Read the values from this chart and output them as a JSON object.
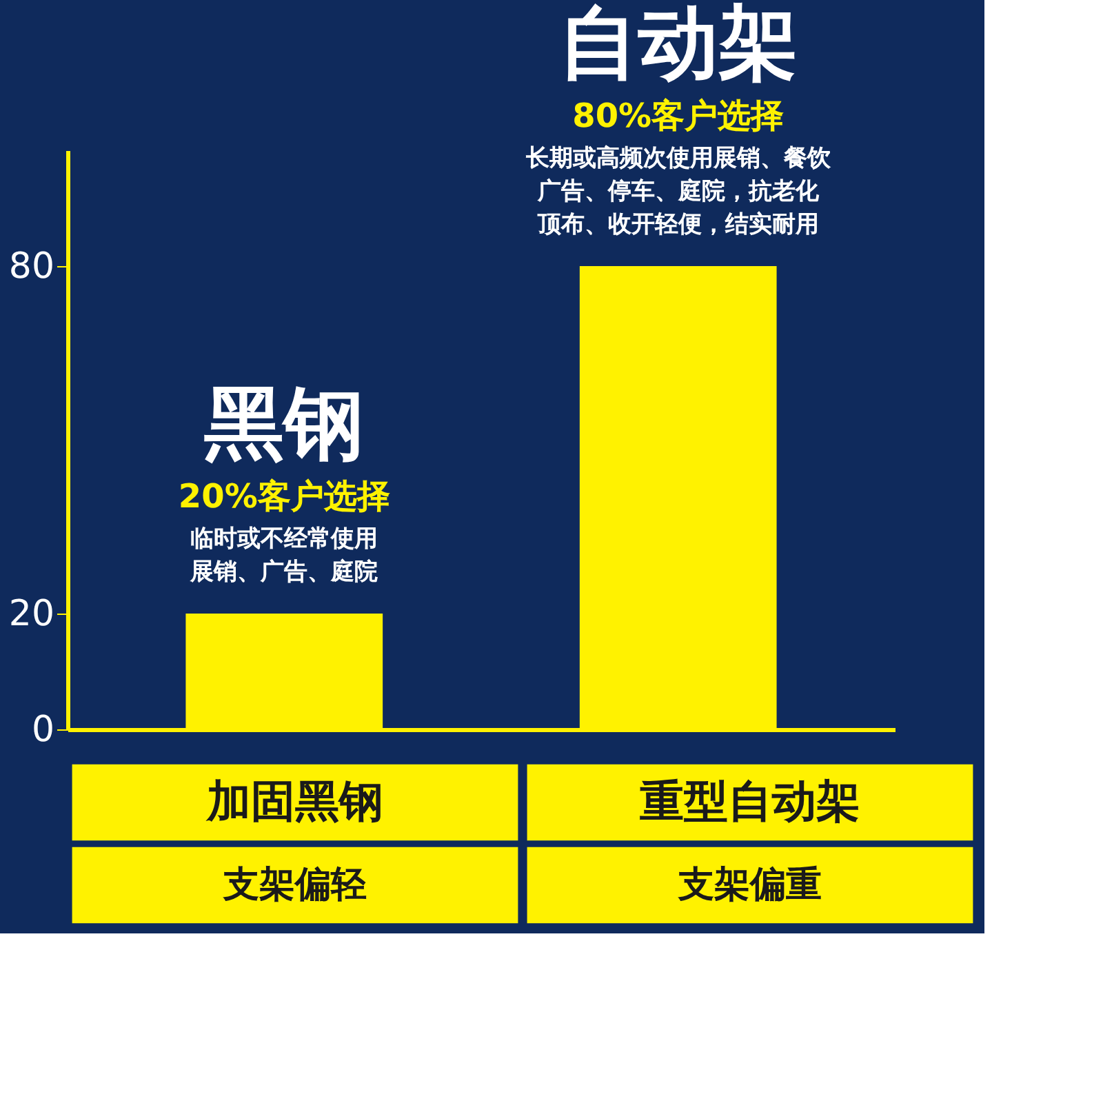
{
  "chart_data": {
    "type": "bar",
    "categories": [
      "黑钢",
      "自动架"
    ],
    "values": [
      20,
      80
    ],
    "color": "#fff200",
    "ylim": [
      0,
      100
    ],
    "yticks": [
      0,
      20,
      80
    ],
    "grid": false,
    "tick_labels": "y",
    "annotations": [
      "20%客户选择",
      "临时或不经常使用展销、广告、庭院",
      "80%客户选择",
      "长期或高频次使用展销、餐饮广告、停车、庭院，抗老化顶布、收开轻便，结实耐用",
      "加固黑钢",
      "重型自动架",
      "支架偏轻",
      "支架偏重"
    ]
  }
}
